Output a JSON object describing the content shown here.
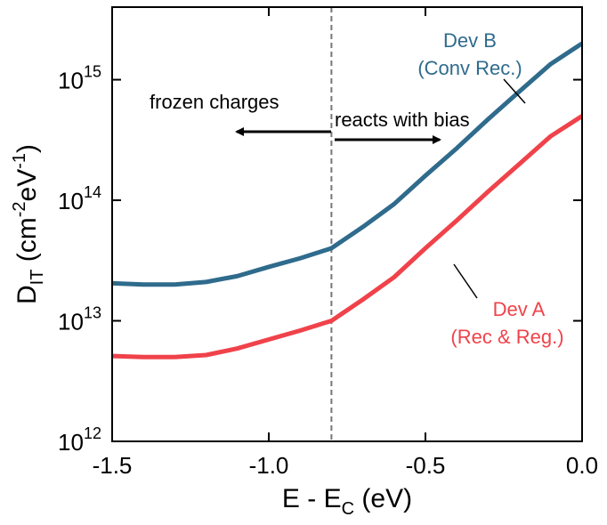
{
  "chart_data": {
    "type": "line",
    "x_label": [
      "E - E",
      "C",
      " (eV)"
    ],
    "y_label": [
      "D",
      "IT",
      " (cm",
      "-2",
      "eV",
      "-1",
      ")"
    ],
    "x": [
      -1.5,
      -1.4,
      -1.3,
      -1.2,
      -1.1,
      -1.0,
      -0.9,
      -0.8,
      -0.7,
      -0.6,
      -0.5,
      -0.4,
      -0.3,
      -0.2,
      -0.1,
      0.0
    ],
    "series": [
      {
        "name": "Dev B",
        "note": "(Conv Rec.)",
        "color": "#2f6b8c",
        "values": [
          20500000000000.0,
          20000000000000.0,
          20000000000000.0,
          21000000000000.0,
          23500000000000.0,
          28000000000000.0,
          33000000000000.0,
          40000000000000.0,
          60000000000000.0,
          93000000000000.0,
          160000000000000.0,
          270000000000000.0,
          470000000000000.0,
          800000000000000.0,
          1350000000000000.0,
          2000000000000000.0
        ]
      },
      {
        "name": "Dev A",
        "note": "(Rec & Reg.)",
        "color": "#f0424a",
        "values": [
          5100000000000.0,
          5000000000000.0,
          5000000000000.0,
          5200000000000.0,
          5900000000000.0,
          7000000000000.0,
          8300000000000.0,
          10000000000000.0,
          15000000000000.0,
          23000000000000.0,
          40000000000000.0,
          68000000000000.0,
          118000000000000.0,
          200000000000000.0,
          340000000000000.0,
          500000000000000.0
        ]
      }
    ],
    "xlim": [
      -1.5,
      0.0
    ],
    "xticks": [
      -1.5,
      {
        "value": -1.0,
        "label": "-1.0"
      },
      -0.5,
      {
        "value": 0.0,
        "label": "0.0"
      }
    ],
    "ylim": [
      1000000000000.0,
      4000000000000000.0
    ],
    "log_y": true,
    "yticks": [
      {
        "value": 1000000000000.0,
        "label": "10",
        "exponent": "12"
      },
      {
        "value": 10000000000000.0,
        "label": "10",
        "exponent": "13"
      },
      {
        "value": 100000000000000.0,
        "label": "10",
        "exponent": "14"
      },
      {
        "value": 1000000000000000.0,
        "label": "10",
        "exponent": "15"
      }
    ],
    "vline": -0.8,
    "annotations": [
      "frozen charges",
      "reacts with bias"
    ]
  }
}
